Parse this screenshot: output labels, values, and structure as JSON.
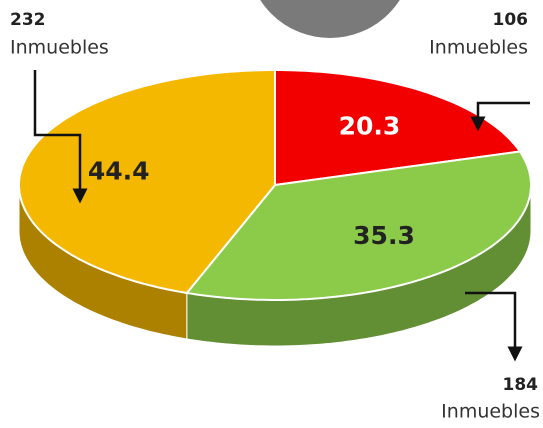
{
  "chart_data": {
    "type": "pie",
    "values": [
      20.3,
      35.3,
      44.4
    ],
    "colors": [
      "#f20000",
      "#8ccb4a",
      "#f5b800"
    ],
    "annotations": [
      {
        "count": 106,
        "label": "Inmuebles"
      },
      {
        "count": 184,
        "label": "Inmuebles"
      },
      {
        "count": 232,
        "label": "Inmuebles"
      }
    ]
  }
}
